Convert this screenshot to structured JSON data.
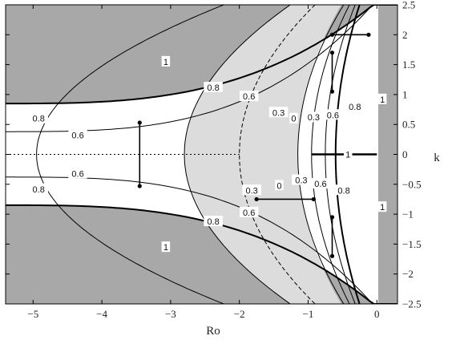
{
  "chart_data": {
    "type": "contour",
    "xlabel": "Ro",
    "ylabel": "k",
    "xlim": [
      -5.4,
      0.3
    ],
    "ylim": [
      -2.5,
      2.5
    ],
    "xticks": [
      -5,
      -4,
      -3,
      -2,
      -1,
      0
    ],
    "yticks": [
      2.5,
      2,
      1.5,
      1,
      0.5,
      0,
      -0.5,
      -1,
      -1.5,
      -2,
      -2.5
    ],
    "xtick_labels": [
      "−5",
      "−4",
      "−3",
      "−2",
      "−1",
      "0"
    ],
    "ytick_labels": [
      "2.5",
      "2",
      "1.5",
      "1",
      "0.5",
      "0",
      "−0.5",
      "−1",
      "−1.5",
      "−2",
      "−2.5"
    ],
    "grid": false,
    "colors": {
      "unstable_region": "#a8a8a8",
      "negative_region": "#dcdcdc",
      "background": "#ffffff",
      "line": "#000000"
    },
    "contour_levels": [
      {
        "level": 1,
        "label": "1",
        "style": "solid-thick",
        "vertex": -5.4
      },
      {
        "level": 0.8,
        "label": "0.8",
        "style": "solid",
        "vertex": -5.4
      },
      {
        "level": 0.6,
        "label": "0.6",
        "style": "solid",
        "vertex": -4.95
      },
      {
        "level": 0.3,
        "label": "0.3",
        "style": "solid",
        "vertex": -2.8
      },
      {
        "level": 0,
        "label": "0",
        "style": "dashed",
        "vertex": -2.0
      },
      {
        "level": 0.3,
        "label": "0.3",
        "style": "solid",
        "vertex": -1.15
      },
      {
        "level": 0.6,
        "label": "0.6",
        "style": "solid",
        "vertex": -0.95
      },
      {
        "level": 0.8,
        "label": "0.8",
        "style": "solid",
        "vertex": -0.75
      },
      {
        "level": 1,
        "label": "1",
        "style": "solid-thick",
        "vertex": -0.6
      }
    ],
    "contour_label_positions": [
      {
        "text": "1",
        "x": -3.07,
        "y": 1.55
      },
      {
        "text": "0.8",
        "x": -2.38,
        "y": 1.12
      },
      {
        "text": "0.6",
        "x": -1.86,
        "y": 0.97
      },
      {
        "text": "0.8",
        "x": -4.92,
        "y": 0.6
      },
      {
        "text": "0.6",
        "x": -4.35,
        "y": 0.32
      },
      {
        "text": "0.3",
        "x": -1.43,
        "y": 0.7
      },
      {
        "text": "0",
        "x": -1.21,
        "y": 0.6
      },
      {
        "text": "0.3",
        "x": -0.92,
        "y": 0.62
      },
      {
        "text": "0.6",
        "x": -0.64,
        "y": 0.66
      },
      {
        "text": "0.8",
        "x": -0.32,
        "y": 0.8
      },
      {
        "text": "1",
        "x": 0.08,
        "y": 0.92
      },
      {
        "text": "1",
        "x": -0.42,
        "y": 0.0
      },
      {
        "text": "0.6",
        "x": -4.35,
        "y": -0.32
      },
      {
        "text": "0.8",
        "x": -4.92,
        "y": -0.58
      },
      {
        "text": "0.3",
        "x": -1.82,
        "y": -0.6
      },
      {
        "text": "0",
        "x": -1.42,
        "y": -0.52
      },
      {
        "text": "0.3",
        "x": -1.1,
        "y": -0.43
      },
      {
        "text": "0.6",
        "x": -0.82,
        "y": -0.49
      },
      {
        "text": "0.8",
        "x": -0.48,
        "y": -0.6
      },
      {
        "text": "1",
        "x": 0.08,
        "y": -0.88
      },
      {
        "text": "0.6",
        "x": -1.86,
        "y": -0.97
      },
      {
        "text": "0.8",
        "x": -2.38,
        "y": -1.12
      },
      {
        "text": "1",
        "x": -3.07,
        "y": -1.55
      }
    ],
    "thick_segment": {
      "x": [
        -0.95,
        0.0
      ],
      "y": [
        0.0,
        0.0
      ]
    },
    "dotted_axis": {
      "x": [
        -5.4,
        -2.0
      ],
      "y": [
        0.0,
        0.0
      ]
    },
    "markers": [
      {
        "x": [
          -3.45,
          -3.45
        ],
        "y": [
          0.53,
          -0.53
        ]
      },
      {
        "x": [
          -0.65,
          -0.65
        ],
        "y": [
          1.05,
          1.7
        ]
      },
      {
        "x": [
          -0.65,
          -0.65
        ],
        "y": [
          -1.05,
          -1.7
        ]
      },
      {
        "x": [
          -0.65,
          -0.12
        ],
        "y": [
          2.0,
          2.0
        ]
      },
      {
        "x": [
          -1.75,
          -0.92
        ],
        "y": [
          -0.75,
          -0.75
        ]
      }
    ]
  }
}
